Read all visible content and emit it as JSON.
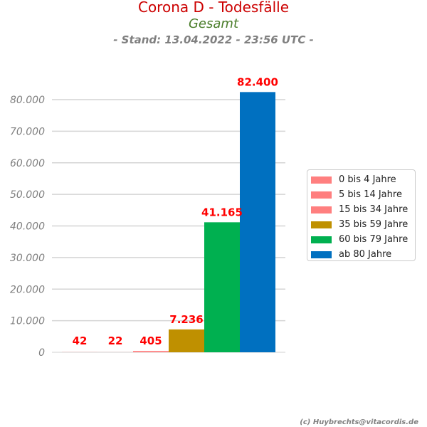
{
  "chart_data": {
    "type": "bar",
    "title": "Corona D - Todesfälle",
    "subtitle": "Gesamt",
    "stand": "- Stand: 13.04.2022 - 23:56 UTC -",
    "categories": [
      "0 bis 4 Jahre",
      "5 bis 14 Jahre",
      "15 bis 34 Jahre",
      "35 bis 59 Jahre",
      "60 bis 79 Jahre",
      "ab 80 Jahre"
    ],
    "values": [
      42,
      22,
      405,
      7236,
      41165,
      82400
    ],
    "value_labels": [
      "42",
      "22",
      "405",
      "7.236",
      "41.165",
      "82.400"
    ],
    "colors": [
      "#ff7f7f",
      "#ff7f7f",
      "#ff7f7f",
      "#bf9000",
      "#00b050",
      "#0070c0"
    ],
    "yticks": [
      0,
      10000,
      20000,
      30000,
      40000,
      50000,
      60000,
      70000,
      80000
    ],
    "ytick_labels": [
      "0",
      "10.000",
      "20.000",
      "30.000",
      "40.000",
      "50.000",
      "60.000",
      "70.000",
      "80.000"
    ],
    "ylim": [
      0,
      80000
    ],
    "grid": true,
    "legend_position": "right",
    "label_color": "#ff0000"
  },
  "credit": "(c) Huybrechts@vitacordis.de"
}
